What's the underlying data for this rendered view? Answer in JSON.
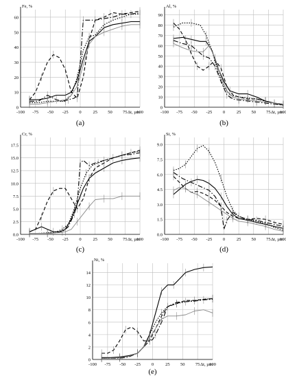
{
  "chart_data": [
    {
      "type": "line",
      "panel_label": "(a)",
      "ylabel": "Fe, %",
      "xlabel": "Δt, µm",
      "xlim": [
        -100,
        100
      ],
      "ylim": [
        0,
        65
      ],
      "x_ticks": [
        -100,
        -75,
        -50,
        -25,
        0,
        25,
        50,
        75,
        100
      ],
      "y_ticks": [
        0,
        10,
        20,
        30,
        40,
        50,
        60
      ],
      "y_tick_labels": [
        "0",
        "10",
        "20",
        "30",
        "40",
        "50",
        "60"
      ],
      "grid": true,
      "series": [
        {
          "style": "solid",
          "color": "#000000",
          "x": [
            -85,
            -70,
            -55,
            -40,
            -25,
            -15,
            -5,
            5,
            15,
            25,
            40,
            55,
            70,
            85,
            100
          ],
          "y": [
            5,
            5,
            6,
            8,
            8,
            10,
            18,
            32,
            44,
            47,
            53,
            55,
            56,
            57,
            57
          ]
        },
        {
          "style": "dotted",
          "color": "#000000",
          "x": [
            -85,
            -70,
            -55,
            -40,
            -25,
            -15,
            -5,
            5,
            15,
            25,
            40,
            55,
            70,
            85,
            100
          ],
          "y": [
            3,
            3,
            4,
            4,
            4,
            8,
            20,
            38,
            47,
            48,
            55,
            58,
            60,
            62,
            62
          ]
        },
        {
          "style": "dashed",
          "color": "#000000",
          "x": [
            -85,
            -75,
            -65,
            -55,
            -45,
            -35,
            -25,
            -15,
            -5,
            5,
            15,
            25,
            40,
            55,
            70,
            85,
            100
          ],
          "y": [
            5,
            10,
            20,
            30,
            35,
            33,
            25,
            10,
            6,
            20,
            45,
            58,
            60,
            63,
            62,
            63,
            64
          ]
        },
        {
          "style": "dashdot",
          "color": "#000000",
          "x": [
            -85,
            -70,
            -55,
            -45,
            -40,
            -30,
            -20,
            -10,
            -5,
            0,
            5,
            15,
            25,
            40,
            55,
            70,
            85,
            100
          ],
          "y": [
            4,
            4,
            8,
            6,
            5,
            4,
            5,
            6,
            8,
            30,
            58,
            58,
            58,
            59,
            60,
            62,
            62,
            63
          ]
        },
        {
          "style": "solid",
          "color": "#888888",
          "x": [
            -85,
            -70,
            -55,
            -40,
            -25,
            -15,
            -5,
            5,
            15,
            25,
            40,
            55,
            70,
            85,
            100
          ],
          "y": [
            2,
            2,
            3,
            4,
            5,
            8,
            14,
            28,
            42,
            47,
            50,
            52,
            54,
            55,
            55
          ]
        }
      ]
    },
    {
      "type": "line",
      "panel_label": "(b)",
      "ylabel": "Al, %",
      "xlabel": "Δt, µm",
      "xlim": [
        -100,
        100
      ],
      "ylim": [
        0,
        95
      ],
      "x_ticks": [
        -100,
        -75,
        -50,
        -25,
        0,
        25,
        50,
        75,
        100
      ],
      "y_ticks": [
        0,
        10,
        20,
        30,
        40,
        50,
        60,
        70,
        80,
        90
      ],
      "y_tick_labels": [
        "0",
        "10",
        "20",
        "30",
        "40",
        "50",
        "60",
        "70",
        "80",
        "90"
      ],
      "grid": true,
      "series": [
        {
          "style": "solid",
          "color": "#000000",
          "x": [
            -85,
            -70,
            -55,
            -40,
            -30,
            -20,
            -10,
            0,
            10,
            25,
            40,
            55,
            70,
            85,
            100
          ],
          "y": [
            67,
            68,
            66,
            64,
            64,
            55,
            38,
            25,
            16,
            13,
            13,
            10,
            6,
            4,
            2
          ]
        },
        {
          "style": "dotted",
          "color": "#000000",
          "x": [
            -85,
            -70,
            -55,
            -40,
            -30,
            -20,
            -10,
            0,
            10,
            25,
            40,
            55,
            70,
            85,
            100
          ],
          "y": [
            78,
            82,
            82,
            80,
            70,
            55,
            35,
            20,
            12,
            10,
            9,
            8,
            6,
            4,
            2
          ]
        },
        {
          "style": "dashed",
          "color": "#000000",
          "x": [
            -85,
            -75,
            -65,
            -55,
            -45,
            -35,
            -25,
            -15,
            -5,
            5,
            15,
            25,
            40,
            55,
            70,
            85,
            100
          ],
          "y": [
            82,
            76,
            66,
            52,
            40,
            36,
            40,
            46,
            38,
            20,
            12,
            10,
            8,
            8,
            6,
            4,
            3
          ]
        },
        {
          "style": "dashdot",
          "color": "#000000",
          "x": [
            -85,
            -70,
            -55,
            -45,
            -35,
            -25,
            -15,
            -5,
            5,
            15,
            25,
            40,
            55,
            70,
            85,
            100
          ],
          "y": [
            65,
            62,
            60,
            55,
            50,
            48,
            40,
            25,
            12,
            8,
            7,
            6,
            5,
            4,
            3,
            2
          ]
        },
        {
          "style": "solid",
          "color": "#888888",
          "x": [
            -85,
            -70,
            -55,
            -45,
            -35,
            -25,
            -15,
            -5,
            5,
            15,
            25,
            40,
            55,
            70,
            85,
            100
          ],
          "y": [
            62,
            58,
            55,
            54,
            54,
            60,
            48,
            30,
            16,
            10,
            8,
            7,
            6,
            5,
            4,
            3
          ]
        }
      ]
    },
    {
      "type": "line",
      "panel_label": "(c)",
      "ylabel": "Cr, %",
      "xlabel": "Δt, µm",
      "xlim": [
        -100,
        100
      ],
      "ylim": [
        0,
        19
      ],
      "x_ticks": [
        -100,
        -75,
        -50,
        -25,
        0,
        25,
        50,
        75,
        100
      ],
      "y_ticks": [
        0,
        2.5,
        5,
        7.5,
        10,
        12.5,
        15,
        17.5
      ],
      "y_tick_labels": [
        "0.0",
        "2.5",
        "5.0",
        "7.5",
        "10.0",
        "12.5",
        "15.0",
        "17.5"
      ],
      "grid": true,
      "series": [
        {
          "style": "solid",
          "color": "#000000",
          "x": [
            -85,
            -75,
            -65,
            -55,
            -45,
            -35,
            -25,
            -15,
            -5,
            5,
            15,
            25,
            40,
            55,
            70,
            85,
            100
          ],
          "y": [
            0.5,
            1,
            1.5,
            1,
            0.5,
            0.5,
            1,
            3,
            6,
            9,
            11,
            12,
            13,
            14,
            14.5,
            14.8,
            15
          ]
        },
        {
          "style": "dotted",
          "color": "#000000",
          "x": [
            -85,
            -70,
            -55,
            -40,
            -30,
            -20,
            -10,
            0,
            10,
            20,
            30,
            40,
            55,
            70,
            85,
            100
          ],
          "y": [
            0.2,
            0.2,
            0.3,
            0.5,
            1,
            2,
            5,
            9,
            12,
            13.5,
            14,
            14.5,
            15,
            15.5,
            16,
            16.3
          ]
        },
        {
          "style": "dashed",
          "color": "#000000",
          "x": [
            -85,
            -75,
            -65,
            -55,
            -45,
            -35,
            -25,
            -15,
            -5,
            5,
            15,
            25,
            40,
            55,
            70,
            85,
            100
          ],
          "y": [
            0.5,
            1,
            3.5,
            6.5,
            8.5,
            9,
            9,
            7,
            5,
            7,
            11,
            13,
            14,
            15,
            15.5,
            16,
            16.5
          ]
        },
        {
          "style": "dashdot",
          "color": "#000000",
          "x": [
            -85,
            -70,
            -55,
            -40,
            -30,
            -20,
            -10,
            -5,
            0,
            5,
            15,
            25,
            40,
            55,
            70,
            85,
            100
          ],
          "y": [
            0.2,
            0.2,
            0.2,
            0.3,
            0.5,
            1.5,
            4,
            6,
            14,
            14.5,
            13.5,
            14,
            14.5,
            15,
            15.5,
            15.7,
            16
          ]
        },
        {
          "style": "solid",
          "color": "#888888",
          "x": [
            -85,
            -70,
            -55,
            -40,
            -25,
            -15,
            -5,
            5,
            15,
            25,
            40,
            55,
            70,
            85,
            100
          ],
          "y": [
            0.2,
            0.2,
            0.2,
            0.3,
            0.5,
            1,
            2.5,
            4,
            5.5,
            6.8,
            7,
            7,
            7.5,
            7.5,
            7.5
          ]
        }
      ]
    },
    {
      "type": "line",
      "panel_label": "(d)",
      "ylabel": "Si, %",
      "xlabel": "Δt, µm",
      "xlim": [
        -100,
        100
      ],
      "ylim": [
        0,
        9.7
      ],
      "x_ticks": [
        -100,
        -75,
        -50,
        -25,
        0,
        25,
        50,
        75,
        100
      ],
      "y_ticks": [
        0,
        1.5,
        3,
        4.5,
        6,
        7.5,
        9
      ],
      "y_tick_labels": [
        "0.0",
        "1.5",
        "3.0",
        "4.5",
        "6.0",
        "7.5",
        "9.0"
      ],
      "grid": true,
      "series": [
        {
          "style": "solid",
          "color": "#000000",
          "x": [
            -85,
            -75,
            -65,
            -55,
            -45,
            -35,
            -25,
            -15,
            -5,
            5,
            15,
            25,
            40,
            55,
            70,
            85,
            100
          ],
          "y": [
            4,
            4.5,
            5,
            5.3,
            5.5,
            5.4,
            5.1,
            4.6,
            3.8,
            2.8,
            2,
            1.6,
            1.4,
            1.2,
            1,
            0.8,
            0.6
          ]
        },
        {
          "style": "dotted",
          "color": "#000000",
          "x": [
            -85,
            -75,
            -65,
            -55,
            -45,
            -35,
            -25,
            -15,
            -5,
            5,
            15,
            25,
            40,
            55,
            70,
            85,
            100
          ],
          "y": [
            6.4,
            6.6,
            7,
            7.8,
            8.6,
            8.9,
            8.3,
            7.2,
            5.6,
            3.8,
            2.4,
            1.8,
            1.5,
            1.3,
            1.1,
            0.7,
            0.4
          ]
        },
        {
          "style": "dashed",
          "color": "#000000",
          "x": [
            -85,
            -75,
            -65,
            -55,
            -45,
            -35,
            -25,
            -15,
            -5,
            5,
            15,
            25,
            40,
            55,
            70,
            85,
            100
          ],
          "y": [
            5.8,
            5.2,
            4.6,
            4.2,
            4.3,
            4.1,
            3.8,
            3.4,
            2.8,
            2.2,
            1.8,
            1.6,
            1.5,
            1.6,
            1.5,
            1.2,
            1
          ]
        },
        {
          "style": "dashdot",
          "color": "#000000",
          "x": [
            -85,
            -70,
            -55,
            -40,
            -25,
            -15,
            -5,
            0,
            5,
            15,
            25,
            40,
            55,
            70,
            85,
            100
          ],
          "y": [
            6.2,
            5.6,
            5.2,
            4.8,
            4.4,
            3.8,
            2.8,
            0.5,
            1.4,
            2.2,
            1.8,
            1.5,
            1.4,
            1.2,
            1,
            0.8
          ]
        },
        {
          "style": "solid",
          "color": "#888888",
          "x": [
            -85,
            -75,
            -65,
            -55,
            -45,
            -35,
            -25,
            -15,
            -5,
            5,
            15,
            25,
            40,
            55,
            70,
            85,
            100
          ],
          "y": [
            4.4,
            4.7,
            4.6,
            4.2,
            4.0,
            3.6,
            3.2,
            2.8,
            2.4,
            2.0,
            1.6,
            1.3,
            1.2,
            1.0,
            0.8,
            0.5,
            0.3
          ]
        }
      ]
    },
    {
      "type": "line",
      "panel_label": "(e)",
      "ylabel": "Ni, %",
      "xlabel": "Δt, µm",
      "xlim": [
        -100,
        100
      ],
      "ylim": [
        0,
        15.5
      ],
      "x_ticks": [
        -100,
        -75,
        -50,
        -25,
        0,
        25,
        50,
        75,
        100
      ],
      "y_ticks": [
        0,
        2,
        4,
        6,
        8,
        10,
        12,
        14
      ],
      "y_tick_labels": [
        "0",
        "2",
        "4",
        "6",
        "8",
        "10",
        "12",
        "14"
      ],
      "grid": true,
      "series": [
        {
          "style": "solid",
          "color": "#000000",
          "x": [
            -85,
            -70,
            -55,
            -40,
            -25,
            -15,
            -5,
            5,
            15,
            25,
            35,
            45,
            55,
            70,
            85,
            100
          ],
          "y": [
            0.3,
            0.3,
            0.4,
            0.6,
            1,
            2,
            4,
            7.5,
            11,
            12,
            12,
            13,
            14,
            14.5,
            14.8,
            14.9
          ]
        },
        {
          "style": "dotted",
          "color": "#000000",
          "x": [
            -85,
            -70,
            -55,
            -40,
            -25,
            -15,
            -5,
            5,
            15,
            25,
            40,
            55,
            70,
            85,
            100
          ],
          "y": [
            0.2,
            0.2,
            0.3,
            0.5,
            1,
            2,
            4,
            6,
            7.5,
            8.5,
            9,
            9.3,
            9.5,
            9.7,
            9.8
          ]
        },
        {
          "style": "dashed",
          "color": "#000000",
          "x": [
            -85,
            -75,
            -65,
            -55,
            -45,
            -35,
            -25,
            -15,
            -5,
            5,
            15,
            25,
            40,
            55,
            70,
            85,
            100
          ],
          "y": [
            1,
            1,
            1.5,
            3,
            4.8,
            5.2,
            4.5,
            3,
            3,
            5,
            7,
            8.5,
            9,
            9.5,
            9.5,
            9.7,
            9.8
          ]
        },
        {
          "style": "dashdot",
          "color": "#000000",
          "x": [
            -85,
            -70,
            -55,
            -40,
            -25,
            -15,
            -5,
            0,
            5,
            15,
            25,
            40,
            55,
            70,
            85,
            100
          ],
          "y": [
            0.2,
            0.2,
            0.2,
            0.4,
            1,
            2,
            3,
            3.2,
            4,
            6,
            8.5,
            9.2,
            9.3,
            9.4,
            9.6,
            9.7
          ]
        },
        {
          "style": "solid",
          "color": "#888888",
          "x": [
            -85,
            -70,
            -55,
            -40,
            -25,
            -15,
            -5,
            5,
            15,
            25,
            40,
            55,
            70,
            85,
            100
          ],
          "y": [
            0.2,
            0.2,
            0.3,
            0.5,
            1,
            2,
            3.5,
            5,
            6.5,
            7,
            7,
            7.2,
            7.8,
            8,
            7.5
          ]
        }
      ]
    }
  ]
}
